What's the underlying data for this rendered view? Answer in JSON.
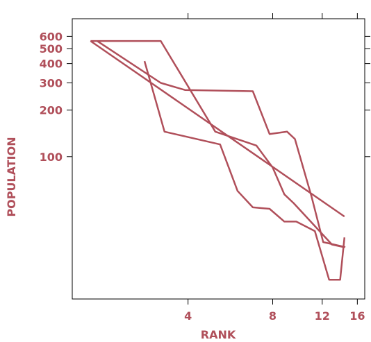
{
  "chart_data": {
    "type": "line",
    "xlabel": "RANK",
    "ylabel": "POPULATION",
    "x_scale": "log",
    "y_scale": "log",
    "xlim": [
      1.55,
      17
    ],
    "ylim": [
      12,
      780
    ],
    "x_ticks": [
      4,
      8,
      12,
      16
    ],
    "x_tick_labels": [
      "4",
      "8",
      "12",
      "16"
    ],
    "y_ticks": [
      100,
      200,
      300,
      400,
      500,
      600
    ],
    "y_tick_labels": [
      "100",
      "200",
      "300",
      "400",
      "500",
      "600"
    ],
    "color": "#b04f5a",
    "grid": false,
    "series": [
      {
        "x": [
          1.8,
          3.2,
          5.0,
          7.0,
          8.0,
          8.8,
          9.5,
          13.0,
          14.3
        ],
        "y": [
          560,
          560,
          145,
          118,
          85,
          57,
          50,
          27,
          26
        ]
      },
      {
        "x": [
          1.9,
          3.2,
          3.9,
          6.8,
          7.8,
          9.0,
          9.6,
          11.0,
          12.1,
          14.5
        ],
        "y": [
          560,
          300,
          270,
          265,
          140,
          145,
          130,
          55,
          28,
          26
        ]
      },
      {
        "x": [
          2.8,
          3.3,
          5.2,
          6.0,
          6.8,
          7.8,
          8.8,
          9.7,
          11.3,
          12.7,
          13.9,
          14.4
        ],
        "y": [
          415,
          145,
          120,
          60,
          47,
          46,
          38,
          38,
          33,
          16,
          16,
          30
        ]
      },
      {
        "x": [
          1.8,
          14.4
        ],
        "y": [
          560,
          41
        ]
      }
    ]
  }
}
